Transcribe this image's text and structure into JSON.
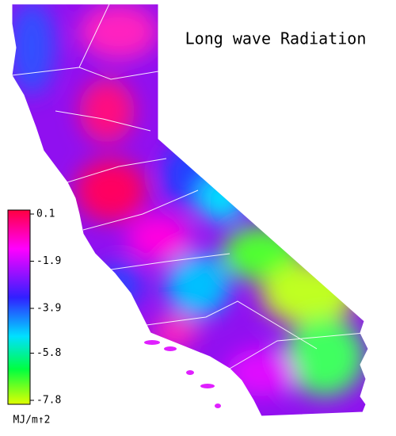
{
  "title": "Long wave Radiation",
  "colorbar": {
    "ticks": [
      0.1,
      -1.9,
      -3.9,
      -5.8,
      -7.8
    ],
    "unit": "MJ/m↑2"
  }
}
